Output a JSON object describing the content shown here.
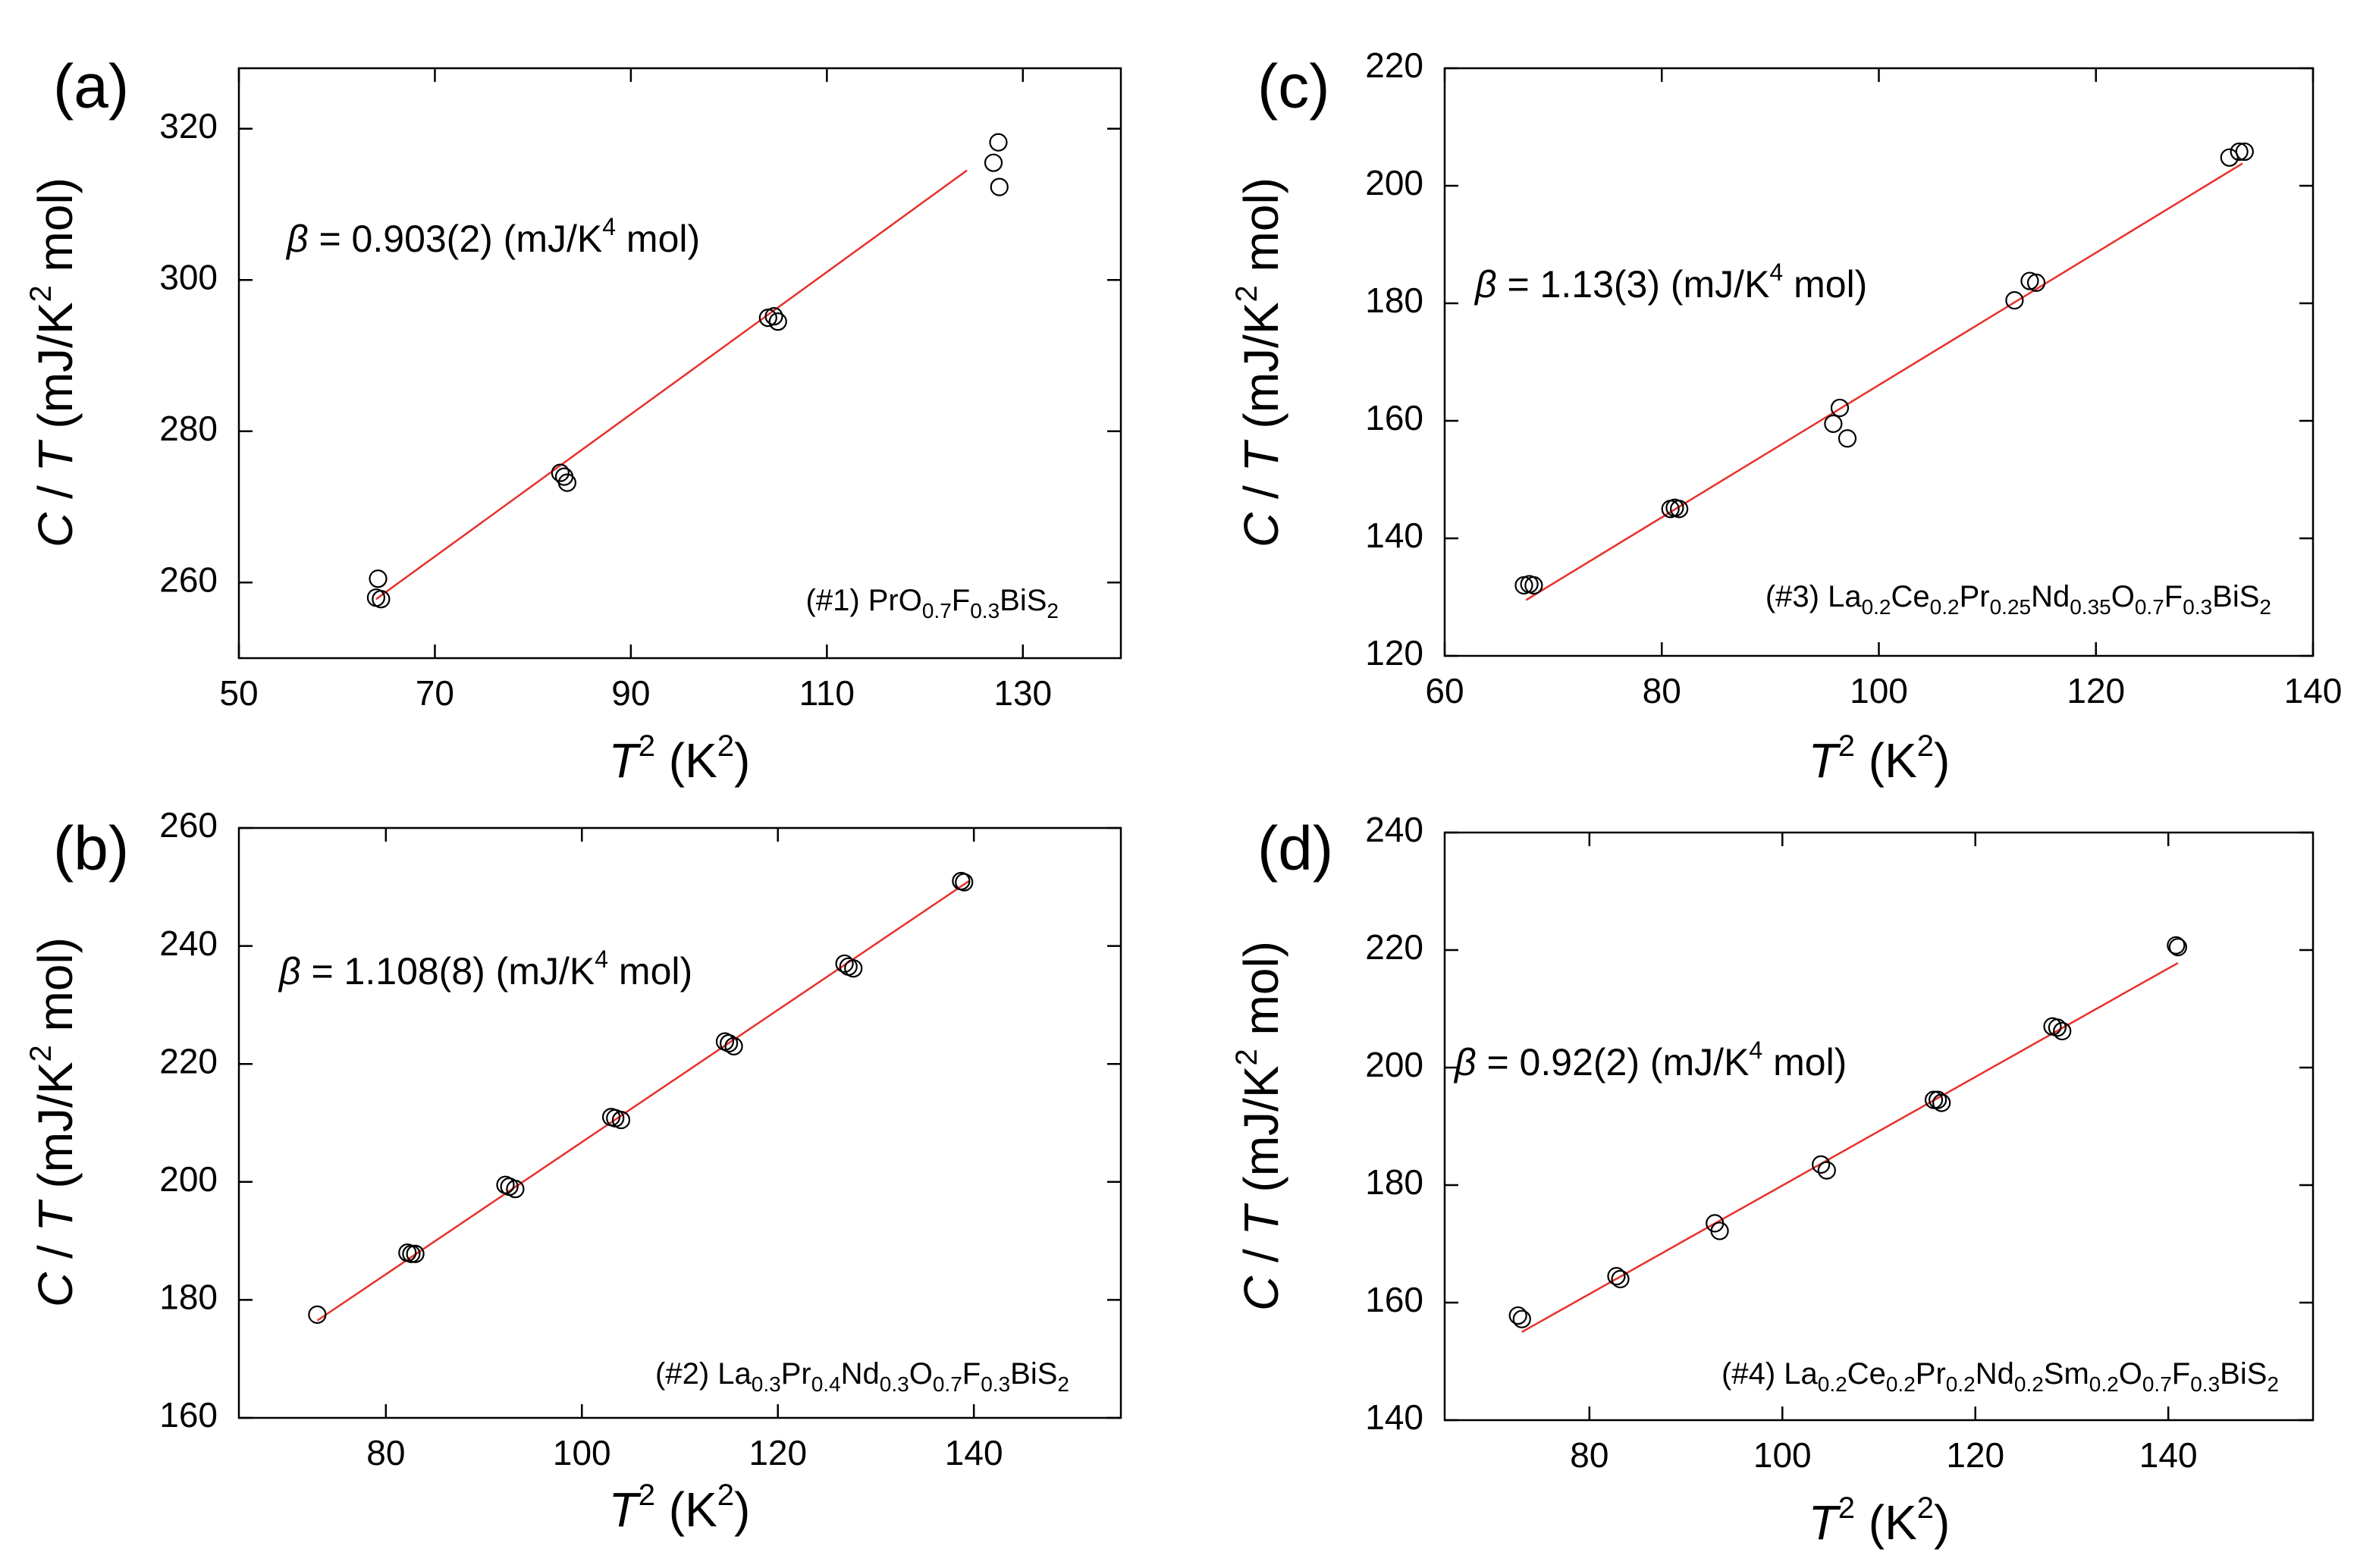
{
  "chart_data": [
    {
      "panel_label": "(a)",
      "type": "scatter",
      "title": "",
      "xlabel": {
        "var": "T",
        "sup": "2",
        "unit": " (K",
        "unit_sup": "2",
        "close": ")"
      },
      "ylabel": {
        "var1": "C",
        "sep": " / ",
        "var2": "T",
        "unit": " (mJ/K",
        "unit_sup": "2",
        "tail": " mol)"
      },
      "xlim": [
        50,
        140
      ],
      "ylim": [
        250,
        328
      ],
      "xticks": [
        50,
        70,
        90,
        110,
        130
      ],
      "yticks": [
        260,
        280,
        300,
        320
      ],
      "beta": {
        "symbol": "β",
        "text": " = 0.903(2) (mJ/K",
        "sup": "4",
        "tail": " mol)"
      },
      "sample": [
        {
          "t": "(#1) PrO",
          "s": ""
        },
        {
          "t": "0.7",
          "s": "sub"
        },
        {
          "t": "F",
          "s": ""
        },
        {
          "t": "0.3",
          "s": "sub"
        },
        {
          "t": "BiS",
          "s": ""
        },
        {
          "t": "2",
          "s": "sub"
        }
      ],
      "points": [
        [
          64.2,
          260.5
        ],
        [
          64.0,
          258.0
        ],
        [
          64.5,
          257.8
        ],
        [
          82.8,
          274.5
        ],
        [
          83.2,
          274.0
        ],
        [
          83.5,
          273.2
        ],
        [
          104.0,
          295.0
        ],
        [
          104.6,
          295.2
        ],
        [
          105.0,
          294.5
        ],
        [
          127.0,
          315.5
        ],
        [
          127.5,
          318.2
        ],
        [
          127.6,
          312.3
        ]
      ],
      "fit": [
        [
          64.0,
          257.8
        ],
        [
          124.3,
          314.5
        ]
      ]
    },
    {
      "panel_label": "(b)",
      "type": "scatter",
      "title": "",
      "xlabel": {
        "var": "T",
        "sup": "2",
        "unit": " (K",
        "unit_sup": "2",
        "close": ")"
      },
      "ylabel": {
        "var1": "C",
        "sep": " / ",
        "var2": "T",
        "unit": " (mJ/K",
        "unit_sup": "2",
        "tail": " mol)"
      },
      "xlim": [
        65,
        155
      ],
      "ylim": [
        160,
        260
      ],
      "xticks": [
        80,
        100,
        120,
        140
      ],
      "yticks": [
        160,
        180,
        200,
        220,
        240,
        260
      ],
      "beta": {
        "symbol": "β",
        "text": " = 1.108(8) (mJ/K",
        "sup": "4",
        "tail": " mol)"
      },
      "sample": [
        {
          "t": "(#2) La",
          "s": ""
        },
        {
          "t": "0.3",
          "s": "sub"
        },
        {
          "t": "Pr",
          "s": ""
        },
        {
          "t": "0.4",
          "s": "sub"
        },
        {
          "t": "Nd",
          "s": ""
        },
        {
          "t": "0.3",
          "s": "sub"
        },
        {
          "t": "O",
          "s": ""
        },
        {
          "t": "0.7",
          "s": "sub"
        },
        {
          "t": "F",
          "s": ""
        },
        {
          "t": "0.3",
          "s": "sub"
        },
        {
          "t": "BiS",
          "s": ""
        },
        {
          "t": "2",
          "s": "sub"
        }
      ],
      "points": [
        [
          73.0,
          177.5
        ],
        [
          82.2,
          188.0
        ],
        [
          82.6,
          187.8
        ],
        [
          83.0,
          187.8
        ],
        [
          92.2,
          199.5
        ],
        [
          92.6,
          199.2
        ],
        [
          93.2,
          198.8
        ],
        [
          103.0,
          211.0
        ],
        [
          103.4,
          210.8
        ],
        [
          104.0,
          210.5
        ],
        [
          114.6,
          223.8
        ],
        [
          115.0,
          223.5
        ],
        [
          115.5,
          223.0
        ],
        [
          126.8,
          237.0
        ],
        [
          127.2,
          236.5
        ],
        [
          127.7,
          236.2
        ],
        [
          138.7,
          251.0
        ],
        [
          139.0,
          250.8
        ]
      ],
      "fit": [
        [
          73.0,
          176.5
        ],
        [
          139.5,
          251.0
        ]
      ]
    },
    {
      "panel_label": "(c)",
      "type": "scatter",
      "title": "",
      "xlabel": {
        "var": "T",
        "sup": "2",
        "unit": " (K",
        "unit_sup": "2",
        "close": ")"
      },
      "ylabel": {
        "var1": "C",
        "sep": " / ",
        "var2": "T",
        "unit": " (mJ/K",
        "unit_sup": "2",
        "tail": " mol)"
      },
      "xlim": [
        60,
        140
      ],
      "ylim": [
        120,
        220
      ],
      "xticks": [
        60,
        80,
        100,
        120,
        140
      ],
      "yticks": [
        120,
        140,
        160,
        180,
        200,
        220
      ],
      "beta": {
        "symbol": "β",
        "text": " = 1.13(3) (mJ/K",
        "sup": "4",
        "tail": " mol)"
      },
      "sample": [
        {
          "t": "(#3) La",
          "s": ""
        },
        {
          "t": "0.2",
          "s": "sub"
        },
        {
          "t": "Ce",
          "s": ""
        },
        {
          "t": "0.2",
          "s": "sub"
        },
        {
          "t": "Pr",
          "s": ""
        },
        {
          "t": "0.25",
          "s": "sub"
        },
        {
          "t": "Nd",
          "s": ""
        },
        {
          "t": "0.35",
          "s": "sub"
        },
        {
          "t": "O",
          "s": ""
        },
        {
          "t": "0.7",
          "s": "sub"
        },
        {
          "t": "F",
          "s": ""
        },
        {
          "t": "0.3",
          "s": "sub"
        },
        {
          "t": "BiS",
          "s": ""
        },
        {
          "t": "2",
          "s": "sub"
        }
      ],
      "points": [
        [
          67.3,
          132.0
        ],
        [
          67.8,
          132.2
        ],
        [
          68.2,
          132.0
        ],
        [
          80.8,
          145.0
        ],
        [
          81.2,
          145.2
        ],
        [
          81.6,
          145.0
        ],
        [
          95.8,
          159.5
        ],
        [
          96.4,
          162.2
        ],
        [
          97.1,
          157.0
        ],
        [
          112.5,
          180.5
        ],
        [
          113.9,
          183.8
        ],
        [
          114.5,
          183.5
        ],
        [
          132.3,
          204.8
        ],
        [
          133.2,
          205.8
        ],
        [
          133.7,
          205.8
        ]
      ],
      "fit": [
        [
          67.5,
          129.5
        ],
        [
          133.5,
          203.8
        ]
      ]
    },
    {
      "panel_label": "(d)",
      "type": "scatter",
      "title": "",
      "xlabel": {
        "var": "T",
        "sup": "2",
        "unit": " (K",
        "unit_sup": "2",
        "close": ")"
      },
      "ylabel": {
        "var1": "C",
        "sep": " / ",
        "var2": "T",
        "unit": " (mJ/K",
        "unit_sup": "2",
        "tail": " mol)"
      },
      "xlim": [
        65,
        155
      ],
      "ylim": [
        140,
        240
      ],
      "xticks": [
        80,
        100,
        120,
        140
      ],
      "yticks": [
        140,
        160,
        180,
        200,
        220,
        240
      ],
      "beta": {
        "symbol": "β",
        "text": " = 0.92(2) (mJ/K",
        "sup": "4",
        "tail": " mol)"
      },
      "sample": [
        {
          "t": "(#4) La",
          "s": ""
        },
        {
          "t": "0.2",
          "s": "sub"
        },
        {
          "t": "Ce",
          "s": ""
        },
        {
          "t": "0.2",
          "s": "sub"
        },
        {
          "t": "Pr",
          "s": ""
        },
        {
          "t": "0.2",
          "s": "sub"
        },
        {
          "t": "Nd",
          "s": ""
        },
        {
          "t": "0.2",
          "s": "sub"
        },
        {
          "t": "Sm",
          "s": ""
        },
        {
          "t": "0.2",
          "s": "sub"
        },
        {
          "t": "O",
          "s": ""
        },
        {
          "t": "0.7",
          "s": "sub"
        },
        {
          "t": "F",
          "s": ""
        },
        {
          "t": "0.3",
          "s": "sub"
        },
        {
          "t": "BiS",
          "s": ""
        },
        {
          "t": "2",
          "s": "sub"
        }
      ],
      "points": [
        [
          72.6,
          157.8
        ],
        [
          73.0,
          157.2
        ],
        [
          82.8,
          164.5
        ],
        [
          83.2,
          164.0
        ],
        [
          93.0,
          173.5
        ],
        [
          93.5,
          172.2
        ],
        [
          104.0,
          183.5
        ],
        [
          104.6,
          182.5
        ],
        [
          115.7,
          194.5
        ],
        [
          116.1,
          194.5
        ],
        [
          116.5,
          194.0
        ],
        [
          128.0,
          207.0
        ],
        [
          128.5,
          206.8
        ],
        [
          129.0,
          206.2
        ],
        [
          140.8,
          220.8
        ],
        [
          141.0,
          220.5
        ]
      ],
      "fit": [
        [
          73.0,
          155.0
        ],
        [
          141.0,
          217.8
        ]
      ]
    }
  ]
}
